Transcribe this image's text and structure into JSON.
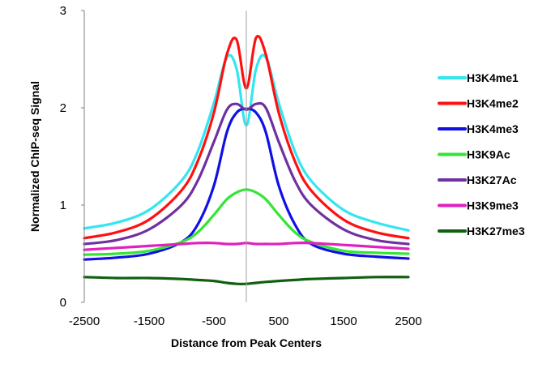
{
  "chart_data": {
    "type": "line",
    "title": "",
    "xlabel": "Distance from Peak Centers",
    "ylabel": "Normalized ChIP-seq Signal",
    "xlim": [
      -2500,
      2500
    ],
    "ylim": [
      0,
      3
    ],
    "xticks": [
      -2500,
      -1500,
      -500,
      500,
      1500,
      2500
    ],
    "xtick_labels": [
      "-2500",
      "-1500",
      "-500",
      "500",
      "1500",
      "2500"
    ],
    "yticks": [
      0,
      1,
      2,
      3
    ],
    "ytick_labels": [
      "0",
      "1",
      "2",
      "3"
    ],
    "grid": false,
    "vertical_reference_line_x": 0,
    "legend_position": "right",
    "x": [
      -2500,
      -2000,
      -1500,
      -1000,
      -750,
      -500,
      -300,
      -150,
      0,
      150,
      300,
      500,
      750,
      1000,
      1500,
      2000,
      2500
    ],
    "series": [
      {
        "name": "H3K4me1",
        "color": "#33e6f0",
        "values": [
          0.76,
          0.82,
          0.95,
          1.25,
          1.55,
          2.05,
          2.52,
          2.4,
          1.82,
          2.4,
          2.52,
          2.05,
          1.55,
          1.25,
          0.95,
          0.82,
          0.74
        ]
      },
      {
        "name": "H3K4me2",
        "color": "#ff1010",
        "values": [
          0.66,
          0.72,
          0.85,
          1.15,
          1.45,
          1.95,
          2.55,
          2.7,
          2.2,
          2.72,
          2.55,
          1.95,
          1.45,
          1.15,
          0.85,
          0.72,
          0.66
        ]
      },
      {
        "name": "H3K4me3",
        "color": "#1010e6",
        "values": [
          0.44,
          0.46,
          0.5,
          0.62,
          0.8,
          1.2,
          1.75,
          1.95,
          1.99,
          1.95,
          1.75,
          1.2,
          0.8,
          0.6,
          0.5,
          0.47,
          0.45
        ]
      },
      {
        "name": "H3K9Ac",
        "color": "#33e633",
        "values": [
          0.49,
          0.5,
          0.53,
          0.62,
          0.72,
          0.9,
          1.06,
          1.13,
          1.16,
          1.13,
          1.06,
          0.9,
          0.72,
          0.62,
          0.53,
          0.51,
          0.5
        ]
      },
      {
        "name": "H3K27Ac",
        "color": "#7030a0",
        "values": [
          0.6,
          0.64,
          0.75,
          1.0,
          1.25,
          1.65,
          1.98,
          2.04,
          1.98,
          2.04,
          2.0,
          1.65,
          1.25,
          1.0,
          0.75,
          0.64,
          0.6
        ]
      },
      {
        "name": "H3K9me3",
        "color": "#e020c0",
        "values": [
          0.54,
          0.56,
          0.58,
          0.6,
          0.61,
          0.61,
          0.6,
          0.6,
          0.61,
          0.6,
          0.6,
          0.6,
          0.61,
          0.61,
          0.59,
          0.57,
          0.55
        ]
      },
      {
        "name": "H3K27me3",
        "color": "#106010",
        "values": [
          0.26,
          0.25,
          0.25,
          0.24,
          0.23,
          0.22,
          0.2,
          0.19,
          0.19,
          0.2,
          0.21,
          0.22,
          0.23,
          0.24,
          0.25,
          0.26,
          0.26
        ]
      }
    ]
  }
}
